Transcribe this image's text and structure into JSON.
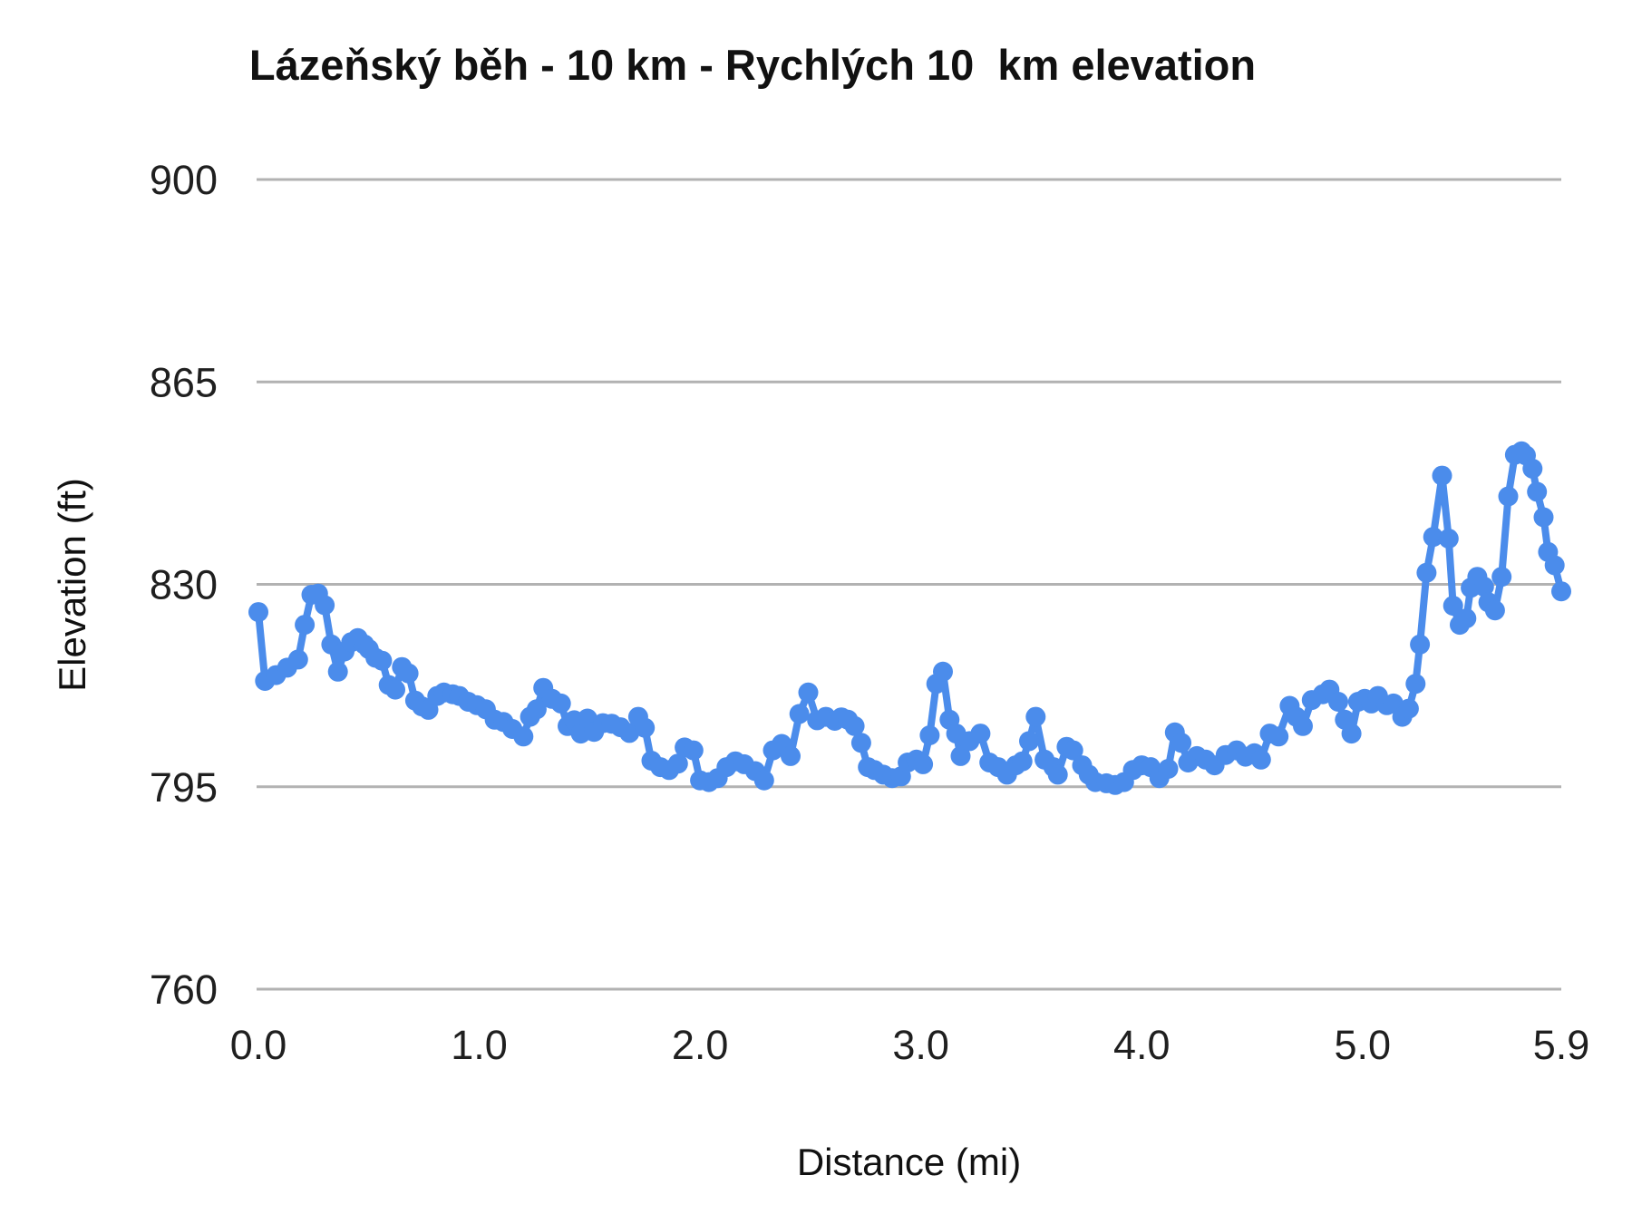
{
  "chart_data": {
    "type": "line",
    "title": "Lázeňský běh - 10 km - Rychlých 10  km elevation",
    "xlabel": "Distance (mi)",
    "ylabel": "Elevation (ft)",
    "xlim": [
      0,
      5.9
    ],
    "ylim": [
      760,
      900
    ],
    "yticks": [
      760,
      795,
      830,
      865,
      900
    ],
    "xtick_values": [
      0,
      1,
      2,
      3,
      4,
      5,
      5.9
    ],
    "xtick_labels": [
      "0.0",
      "1.0",
      "2.0",
      "3.0",
      "4.0",
      "5.0",
      "5.9"
    ],
    "grid": "horizontal",
    "legend_position": "none",
    "marker": "circle",
    "colors": {
      "series": "#4b8ceb",
      "gridline": "#b2b2b2",
      "text": "#1f1f1f"
    },
    "series": [
      {
        "name": "elevation",
        "points": [
          [
            0.0,
            825.2
          ],
          [
            0.03,
            813.3
          ],
          [
            0.08,
            814.3
          ],
          [
            0.13,
            815.6
          ],
          [
            0.18,
            817.0
          ],
          [
            0.21,
            823.0
          ],
          [
            0.24,
            828.2
          ],
          [
            0.27,
            828.4
          ],
          [
            0.3,
            826.4
          ],
          [
            0.33,
            819.6
          ],
          [
            0.36,
            814.9
          ],
          [
            0.39,
            818.4
          ],
          [
            0.42,
            820.0
          ],
          [
            0.45,
            820.7
          ],
          [
            0.48,
            819.6
          ],
          [
            0.5,
            818.8
          ],
          [
            0.53,
            817.3
          ],
          [
            0.56,
            816.8
          ],
          [
            0.59,
            812.6
          ],
          [
            0.62,
            811.8
          ],
          [
            0.65,
            815.7
          ],
          [
            0.68,
            814.6
          ],
          [
            0.71,
            809.9
          ],
          [
            0.74,
            808.9
          ],
          [
            0.77,
            808.3
          ],
          [
            0.81,
            810.7
          ],
          [
            0.84,
            811.3
          ],
          [
            0.88,
            811.0
          ],
          [
            0.91,
            810.7
          ],
          [
            0.95,
            809.7
          ],
          [
            0.99,
            809.1
          ],
          [
            1.03,
            808.4
          ],
          [
            1.07,
            806.6
          ],
          [
            1.11,
            806.2
          ],
          [
            1.15,
            805.0
          ],
          [
            1.2,
            803.7
          ],
          [
            1.23,
            807.1
          ],
          [
            1.26,
            808.4
          ],
          [
            1.29,
            812.1
          ],
          [
            1.33,
            810.2
          ],
          [
            1.37,
            809.4
          ],
          [
            1.4,
            805.5
          ],
          [
            1.43,
            806.5
          ],
          [
            1.46,
            804.2
          ],
          [
            1.49,
            806.8
          ],
          [
            1.52,
            804.5
          ],
          [
            1.56,
            806.0
          ],
          [
            1.6,
            805.9
          ],
          [
            1.64,
            805.3
          ],
          [
            1.68,
            804.3
          ],
          [
            1.72,
            807.1
          ],
          [
            1.75,
            805.2
          ],
          [
            1.78,
            799.5
          ],
          [
            1.82,
            798.4
          ],
          [
            1.86,
            797.9
          ],
          [
            1.9,
            799.0
          ],
          [
            1.93,
            801.8
          ],
          [
            1.97,
            801.3
          ],
          [
            2.0,
            796.1
          ],
          [
            2.04,
            795.8
          ],
          [
            2.08,
            796.5
          ],
          [
            2.12,
            798.4
          ],
          [
            2.16,
            799.4
          ],
          [
            2.2,
            798.9
          ],
          [
            2.25,
            797.7
          ],
          [
            2.29,
            796.1
          ],
          [
            2.33,
            801.3
          ],
          [
            2.37,
            802.4
          ],
          [
            2.41,
            800.3
          ],
          [
            2.45,
            807.6
          ],
          [
            2.49,
            811.3
          ],
          [
            2.53,
            806.5
          ],
          [
            2.57,
            807.1
          ],
          [
            2.61,
            806.4
          ],
          [
            2.64,
            807.0
          ],
          [
            2.67,
            806.6
          ],
          [
            2.7,
            805.5
          ],
          [
            2.73,
            802.6
          ],
          [
            2.76,
            798.4
          ],
          [
            2.79,
            797.9
          ],
          [
            2.83,
            797.1
          ],
          [
            2.87,
            796.5
          ],
          [
            2.91,
            796.8
          ],
          [
            2.94,
            799.2
          ],
          [
            2.98,
            799.7
          ],
          [
            3.01,
            798.9
          ],
          [
            3.04,
            803.9
          ],
          [
            3.07,
            812.8
          ],
          [
            3.1,
            814.9
          ],
          [
            3.13,
            806.6
          ],
          [
            3.16,
            804.2
          ],
          [
            3.18,
            800.3
          ],
          [
            3.22,
            802.9
          ],
          [
            3.27,
            804.2
          ],
          [
            3.31,
            799.2
          ],
          [
            3.35,
            798.4
          ],
          [
            3.39,
            797.1
          ],
          [
            3.43,
            798.7
          ],
          [
            3.46,
            799.4
          ],
          [
            3.49,
            802.9
          ],
          [
            3.52,
            807.1
          ],
          [
            3.56,
            799.7
          ],
          [
            3.6,
            798.4
          ],
          [
            3.62,
            797.1
          ],
          [
            3.66,
            801.9
          ],
          [
            3.69,
            801.3
          ],
          [
            3.73,
            798.7
          ],
          [
            3.76,
            797.1
          ],
          [
            3.79,
            795.8
          ],
          [
            3.84,
            795.6
          ],
          [
            3.88,
            795.3
          ],
          [
            3.92,
            795.8
          ],
          [
            3.96,
            797.9
          ],
          [
            4.0,
            798.7
          ],
          [
            4.04,
            798.4
          ],
          [
            4.08,
            796.5
          ],
          [
            4.12,
            798.1
          ],
          [
            4.15,
            804.4
          ],
          [
            4.18,
            802.6
          ],
          [
            4.21,
            799.2
          ],
          [
            4.25,
            800.3
          ],
          [
            4.29,
            799.7
          ],
          [
            4.33,
            798.7
          ],
          [
            4.38,
            800.5
          ],
          [
            4.43,
            801.3
          ],
          [
            4.47,
            800.2
          ],
          [
            4.51,
            800.8
          ],
          [
            4.54,
            799.7
          ],
          [
            4.58,
            804.2
          ],
          [
            4.62,
            803.7
          ],
          [
            4.67,
            809.0
          ],
          [
            4.7,
            807.1
          ],
          [
            4.73,
            805.5
          ],
          [
            4.77,
            810.0
          ],
          [
            4.82,
            811.0
          ],
          [
            4.85,
            811.8
          ],
          [
            4.89,
            809.7
          ],
          [
            4.92,
            806.6
          ],
          [
            4.95,
            804.2
          ],
          [
            4.98,
            809.7
          ],
          [
            5.01,
            810.2
          ],
          [
            5.04,
            809.4
          ],
          [
            5.07,
            810.7
          ],
          [
            5.11,
            809.1
          ],
          [
            5.14,
            809.4
          ],
          [
            5.18,
            807.1
          ],
          [
            5.21,
            808.5
          ],
          [
            5.24,
            812.8
          ],
          [
            5.26,
            819.6
          ],
          [
            5.29,
            832.0
          ],
          [
            5.32,
            838.2
          ],
          [
            5.36,
            848.8
          ],
          [
            5.39,
            837.9
          ],
          [
            5.41,
            826.3
          ],
          [
            5.44,
            823.0
          ],
          [
            5.47,
            824.1
          ],
          [
            5.49,
            829.4
          ],
          [
            5.52,
            831.3
          ],
          [
            5.55,
            829.6
          ],
          [
            5.57,
            826.9
          ],
          [
            5.6,
            825.5
          ],
          [
            5.63,
            831.3
          ],
          [
            5.66,
            845.2
          ],
          [
            5.69,
            852.4
          ],
          [
            5.72,
            853.0
          ],
          [
            5.74,
            852.3
          ],
          [
            5.77,
            850.0
          ],
          [
            5.79,
            846.0
          ],
          [
            5.82,
            841.6
          ],
          [
            5.84,
            835.6
          ],
          [
            5.87,
            833.3
          ],
          [
            5.9,
            828.8
          ]
        ]
      }
    ]
  }
}
